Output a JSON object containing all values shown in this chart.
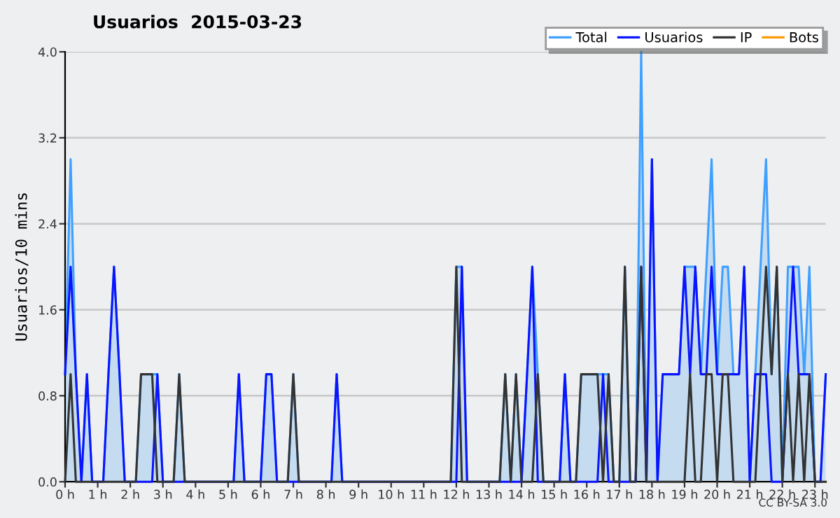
{
  "chart_data": {
    "type": "line",
    "title": "Usuarios  2015-03-23",
    "ylabel": "Usuarios/10 mins",
    "annotations": [
      "CC BY-SA 3.0"
    ],
    "x": [
      0,
      0.17,
      0.33,
      0.5,
      0.67,
      0.83,
      1,
      1.17,
      1.33,
      1.5,
      1.67,
      1.83,
      2,
      2.17,
      2.33,
      2.5,
      2.67,
      2.83,
      3,
      3.17,
      3.33,
      3.5,
      3.67,
      3.83,
      4,
      4.17,
      4.33,
      4.5,
      4.67,
      4.83,
      5,
      5.17,
      5.33,
      5.5,
      5.67,
      5.83,
      6,
      6.17,
      6.33,
      6.5,
      6.67,
      6.83,
      7,
      7.17,
      7.33,
      7.5,
      7.67,
      7.83,
      8,
      8.17,
      8.33,
      8.5,
      8.67,
      8.83,
      9,
      9.17,
      9.33,
      9.5,
      9.67,
      9.83,
      10,
      10.17,
      10.33,
      10.5,
      10.67,
      10.83,
      11,
      11.17,
      11.33,
      11.5,
      11.67,
      11.83,
      12,
      12.17,
      12.33,
      12.5,
      12.67,
      12.83,
      13,
      13.17,
      13.33,
      13.5,
      13.67,
      13.83,
      14,
      14.17,
      14.33,
      14.5,
      14.67,
      14.83,
      15,
      15.17,
      15.33,
      15.5,
      15.67,
      15.83,
      16,
      16.17,
      16.33,
      16.5,
      16.67,
      16.83,
      17,
      17.17,
      17.33,
      17.5,
      17.67,
      17.83,
      18,
      18.17,
      18.33,
      18.5,
      18.67,
      18.83,
      19,
      19.17,
      19.33,
      19.5,
      19.67,
      19.83,
      20,
      20.17,
      20.33,
      20.5,
      20.67,
      20.83,
      21,
      21.17,
      21.33,
      21.5,
      21.67,
      21.83,
      22,
      22.17,
      22.33,
      22.5,
      22.67,
      22.83,
      23,
      23.17,
      23.33
    ],
    "series": [
      {
        "name": "Total",
        "type": "area",
        "color": "#3fa0ff",
        "values": [
          1,
          3,
          1,
          0,
          1,
          0,
          0,
          0,
          1,
          2,
          1,
          0,
          0,
          0,
          1,
          1,
          1,
          1,
          0,
          0,
          0,
          1,
          0,
          0,
          0,
          0,
          0,
          0,
          0,
          0,
          0,
          0,
          1,
          0,
          0,
          0,
          0,
          1,
          1,
          0,
          0,
          0,
          1,
          0,
          0,
          0,
          0,
          0,
          0,
          0,
          1,
          0,
          0,
          0,
          0,
          0,
          0,
          0,
          0,
          0,
          0,
          0,
          0,
          0,
          0,
          0,
          0,
          0,
          0,
          0,
          0,
          0,
          2,
          2,
          0,
          0,
          0,
          0,
          0,
          0,
          0,
          1,
          0,
          1,
          0,
          1,
          2,
          1,
          0,
          0,
          0,
          0,
          1,
          0,
          0,
          1,
          1,
          1,
          1,
          1,
          1,
          0,
          0,
          2,
          0,
          0,
          4,
          0,
          3,
          0,
          1,
          1,
          1,
          1,
          2,
          2,
          2,
          1,
          2,
          3,
          1,
          2,
          2,
          1,
          1,
          2,
          0,
          1,
          2,
          3,
          1,
          2,
          0,
          2,
          2,
          2,
          1,
          2,
          0,
          0,
          1
        ]
      },
      {
        "name": "Usuarios",
        "color": "#0a14ff",
        "values": [
          1,
          2,
          1,
          0,
          1,
          0,
          0,
          0,
          1,
          2,
          1,
          0,
          0,
          0,
          0,
          0,
          0,
          1,
          0,
          0,
          0,
          0,
          0,
          0,
          0,
          0,
          0,
          0,
          0,
          0,
          0,
          0,
          1,
          0,
          0,
          0,
          0,
          1,
          1,
          0,
          0,
          0,
          0,
          0,
          0,
          0,
          0,
          0,
          0,
          0,
          1,
          0,
          0,
          0,
          0,
          0,
          0,
          0,
          0,
          0,
          0,
          0,
          0,
          0,
          0,
          0,
          0,
          0,
          0,
          0,
          0,
          0,
          0,
          2,
          0,
          0,
          0,
          0,
          0,
          0,
          0,
          0,
          0,
          0,
          0,
          1,
          2,
          0,
          0,
          0,
          0,
          0,
          1,
          0,
          0,
          0,
          0,
          0,
          0,
          1,
          0,
          0,
          0,
          0,
          0,
          0,
          2,
          0,
          3,
          0,
          1,
          1,
          1,
          1,
          2,
          1,
          2,
          1,
          1,
          2,
          1,
          1,
          1,
          1,
          1,
          2,
          0,
          1,
          1,
          1,
          0,
          0,
          0,
          1,
          2,
          1,
          1,
          1,
          0,
          0,
          1
        ]
      },
      {
        "name": "IP",
        "color": "#333333",
        "values": [
          0,
          1,
          0,
          0,
          0,
          0,
          0,
          0,
          0,
          0,
          0,
          0,
          0,
          0,
          1,
          1,
          1,
          0,
          0,
          0,
          0,
          1,
          0,
          0,
          0,
          0,
          0,
          0,
          0,
          0,
          0,
          0,
          0,
          0,
          0,
          0,
          0,
          0,
          0,
          0,
          0,
          0,
          1,
          0,
          0,
          0,
          0,
          0,
          0,
          0,
          0,
          0,
          0,
          0,
          0,
          0,
          0,
          0,
          0,
          0,
          0,
          0,
          0,
          0,
          0,
          0,
          0,
          0,
          0,
          0,
          0,
          0,
          2,
          0,
          0,
          0,
          0,
          0,
          0,
          0,
          0,
          1,
          0,
          1,
          0,
          0,
          0,
          1,
          0,
          0,
          0,
          0,
          0,
          0,
          0,
          1,
          1,
          1,
          1,
          0,
          1,
          0,
          0,
          2,
          0,
          0,
          2,
          0,
          0,
          0,
          0,
          0,
          0,
          0,
          0,
          1,
          0,
          0,
          1,
          1,
          0,
          1,
          1,
          0,
          0,
          0,
          0,
          0,
          1,
          2,
          1,
          2,
          0,
          1,
          0,
          1,
          0,
          1,
          0,
          0,
          0
        ]
      },
      {
        "name": "Bots",
        "color": "#ff9900",
        "values": [
          null,
          null,
          null,
          null,
          null,
          null,
          null,
          null,
          null,
          null,
          null,
          null,
          null,
          null,
          null,
          null,
          null,
          null,
          null,
          null,
          null,
          null,
          null,
          null,
          null,
          null,
          null,
          null,
          null,
          null,
          null,
          null,
          null,
          null,
          null,
          null,
          null,
          null,
          null,
          null,
          null,
          null,
          null,
          null,
          null,
          null,
          null,
          null,
          null,
          null,
          null,
          null,
          null,
          null,
          null,
          null,
          null,
          null,
          null,
          null,
          null,
          null,
          null,
          null,
          null,
          null,
          null,
          null,
          null,
          null,
          null,
          null,
          null,
          null,
          null,
          null,
          null,
          null,
          null,
          null,
          null,
          null,
          null,
          null,
          null,
          null,
          null,
          null,
          null,
          null,
          null,
          null,
          null,
          null,
          null,
          null,
          null,
          null,
          null,
          null,
          null,
          null,
          null,
          null,
          null,
          null,
          null,
          null,
          null,
          null,
          null,
          null,
          null,
          null,
          null,
          null,
          null,
          null,
          null,
          null,
          null,
          null,
          null,
          null,
          null,
          null,
          null,
          null,
          null,
          null,
          null,
          null,
          null,
          null,
          null,
          null,
          null,
          null,
          null,
          null,
          null
        ]
      }
    ],
    "xlim": [
      0,
      23.33
    ],
    "xticks": [
      {
        "value": 0,
        "label": "0 h"
      },
      {
        "value": 1,
        "label": "1 h"
      },
      {
        "value": 2,
        "label": "2 h"
      },
      {
        "value": 3,
        "label": "3 h"
      },
      {
        "value": 4,
        "label": "4 h"
      },
      {
        "value": 5,
        "label": "5 h"
      },
      {
        "value": 6,
        "label": "6 h"
      },
      {
        "value": 7,
        "label": "7 h"
      },
      {
        "value": 8,
        "label": "8 h"
      },
      {
        "value": 9,
        "label": "9 h"
      },
      {
        "value": 10,
        "label": "10 h"
      },
      {
        "value": 11,
        "label": "11 h"
      },
      {
        "value": 12,
        "label": "12 h"
      },
      {
        "value": 13,
        "label": "13 h"
      },
      {
        "value": 14,
        "label": "14 h"
      },
      {
        "value": 15,
        "label": "15 h"
      },
      {
        "value": 16,
        "label": "16 h"
      },
      {
        "value": 17,
        "label": "17 h"
      },
      {
        "value": 18,
        "label": "18 h"
      },
      {
        "value": 19,
        "label": "19 h"
      },
      {
        "value": 20,
        "label": "20 h"
      },
      {
        "value": 21,
        "label": "21 h"
      },
      {
        "value": 22,
        "label": "22 h"
      },
      {
        "value": 23,
        "label": "23 h"
      }
    ],
    "ylim": [
      0,
      4
    ],
    "yticks": [
      {
        "value": 0,
        "label": "0.0"
      },
      {
        "value": 0.8,
        "label": "0.8"
      },
      {
        "value": 1.6,
        "label": "1.6"
      },
      {
        "value": 2.4,
        "label": "2.4"
      },
      {
        "value": 3.2,
        "label": "3.2"
      },
      {
        "value": 4,
        "label": "4.0"
      }
    ],
    "grid": "y",
    "legend": "top right",
    "marker": "none",
    "line_style": "solid"
  }
}
